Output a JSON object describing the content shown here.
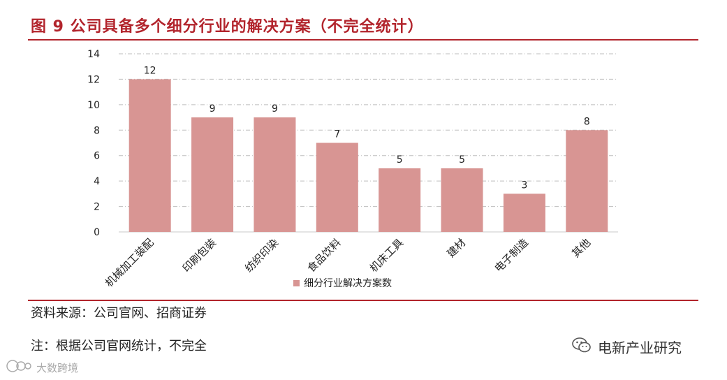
{
  "header": {
    "title": "图 9 公司具备多个细分行业的解决方案（不完全统计）"
  },
  "chart_data": {
    "type": "bar",
    "categories": [
      "机械加工装配",
      "印刷包装",
      "纺织印染",
      "食品饮料",
      "机床工具",
      "建材",
      "电子制造",
      "其他"
    ],
    "series": [
      {
        "name": "细分行业解决方案数",
        "values": [
          12,
          9,
          9,
          7,
          5,
          5,
          3,
          8
        ],
        "color": "#d89593"
      }
    ],
    "data_labels": [
      "12",
      "9",
      "9",
      "7",
      "5",
      "5",
      "3",
      "8"
    ],
    "y_ticks": [
      "0",
      "2",
      "4",
      "6",
      "8",
      "10",
      "12",
      "14"
    ],
    "ylim": [
      0,
      14
    ],
    "grid": true,
    "legend_position": "bottom"
  },
  "footer": {
    "source": "资料来源：公司官网、招商证券",
    "note": "注：根据公司官网统计，不完全"
  },
  "watermarks": {
    "right_text": "电新产业研究",
    "right_icon": "wechat-icon",
    "left_text": "大数跨境",
    "left_icon": "logo-icon"
  }
}
